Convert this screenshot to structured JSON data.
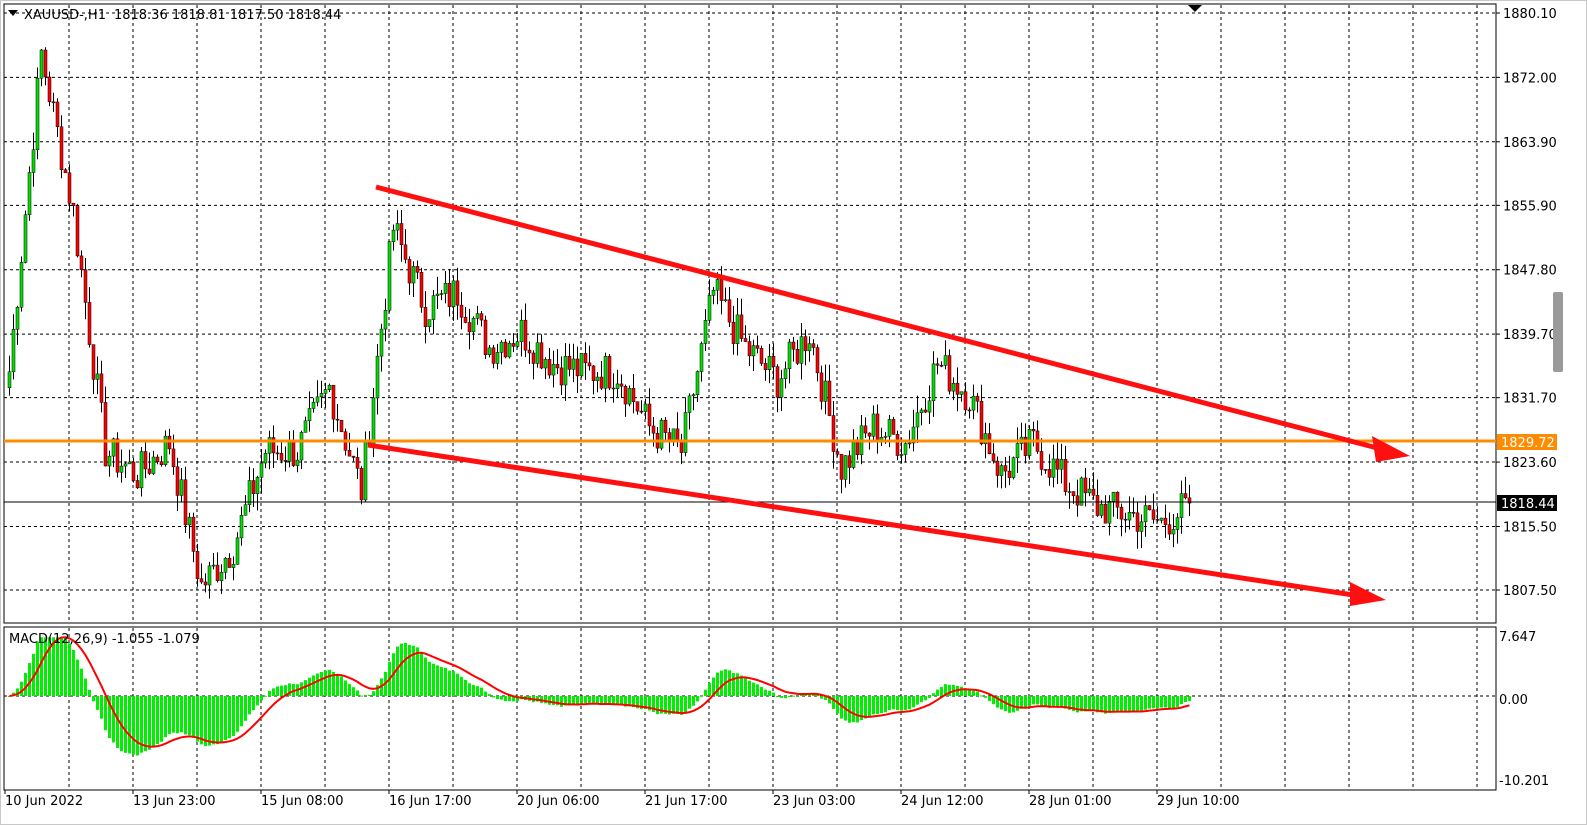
{
  "header": {
    "symbol": "XAUUSD-,H1",
    "ohlc": "1818.36 1818.81 1817.50 1818.44"
  },
  "macd_label": "MACD(12,26,9) -1.055 -1.079",
  "colors": {
    "bull": "#00e000",
    "bear": "#ff0000",
    "wick": "#000000",
    "trendline": "#ff1010",
    "level": "#ff8c00",
    "macd_hist": "#00ee00",
    "macd_signal": "#ff0000"
  },
  "chart_data": {
    "type": "candlestick",
    "symbol": "XAUUSD-",
    "timeframe": "H1",
    "price_ticks": [
      "1880.10",
      "1872.00",
      "1863.90",
      "1855.90",
      "1847.80",
      "1839.70",
      "1831.70",
      "1823.60",
      "1815.50",
      "1807.50"
    ],
    "ylim": [
      1802.4,
      1881.5
    ],
    "time_labels": [
      "10 Jun 2022",
      "13 Jun 23:00",
      "15 Jun 08:00",
      "16 Jun 17:00",
      "20 Jun 06:00",
      "21 Jun 17:00",
      "23 Jun 03:00",
      "24 Jun 12:00",
      "28 Jun 01:00",
      "29 Jun 10:00"
    ],
    "approx_close_every_8_bars": [
      1835,
      1875,
      1855,
      1825,
      1822,
      1826,
      1808,
      1813,
      1825,
      1825,
      1833,
      1820,
      1853,
      1843,
      1845,
      1838,
      1840,
      1836,
      1835,
      1835,
      1828,
      1825,
      1845,
      1838,
      1834,
      1840,
      1823,
      1828,
      1826,
      1836,
      1832,
      1822,
      1826,
      1821,
      1818,
      1817,
      1816,
      1818.44
    ],
    "current_price": "1818.44",
    "horizontal_level": "1829.72",
    "trendlines": "descending channel (two red arrows)",
    "macd": {
      "params": "12,26,9",
      "ticks": [
        "7.647",
        "0.00",
        "-10.201"
      ],
      "ylim": [
        -10.201,
        7.647
      ],
      "current_main": -1.055,
      "current_signal": -1.079
    },
    "grid": true
  }
}
